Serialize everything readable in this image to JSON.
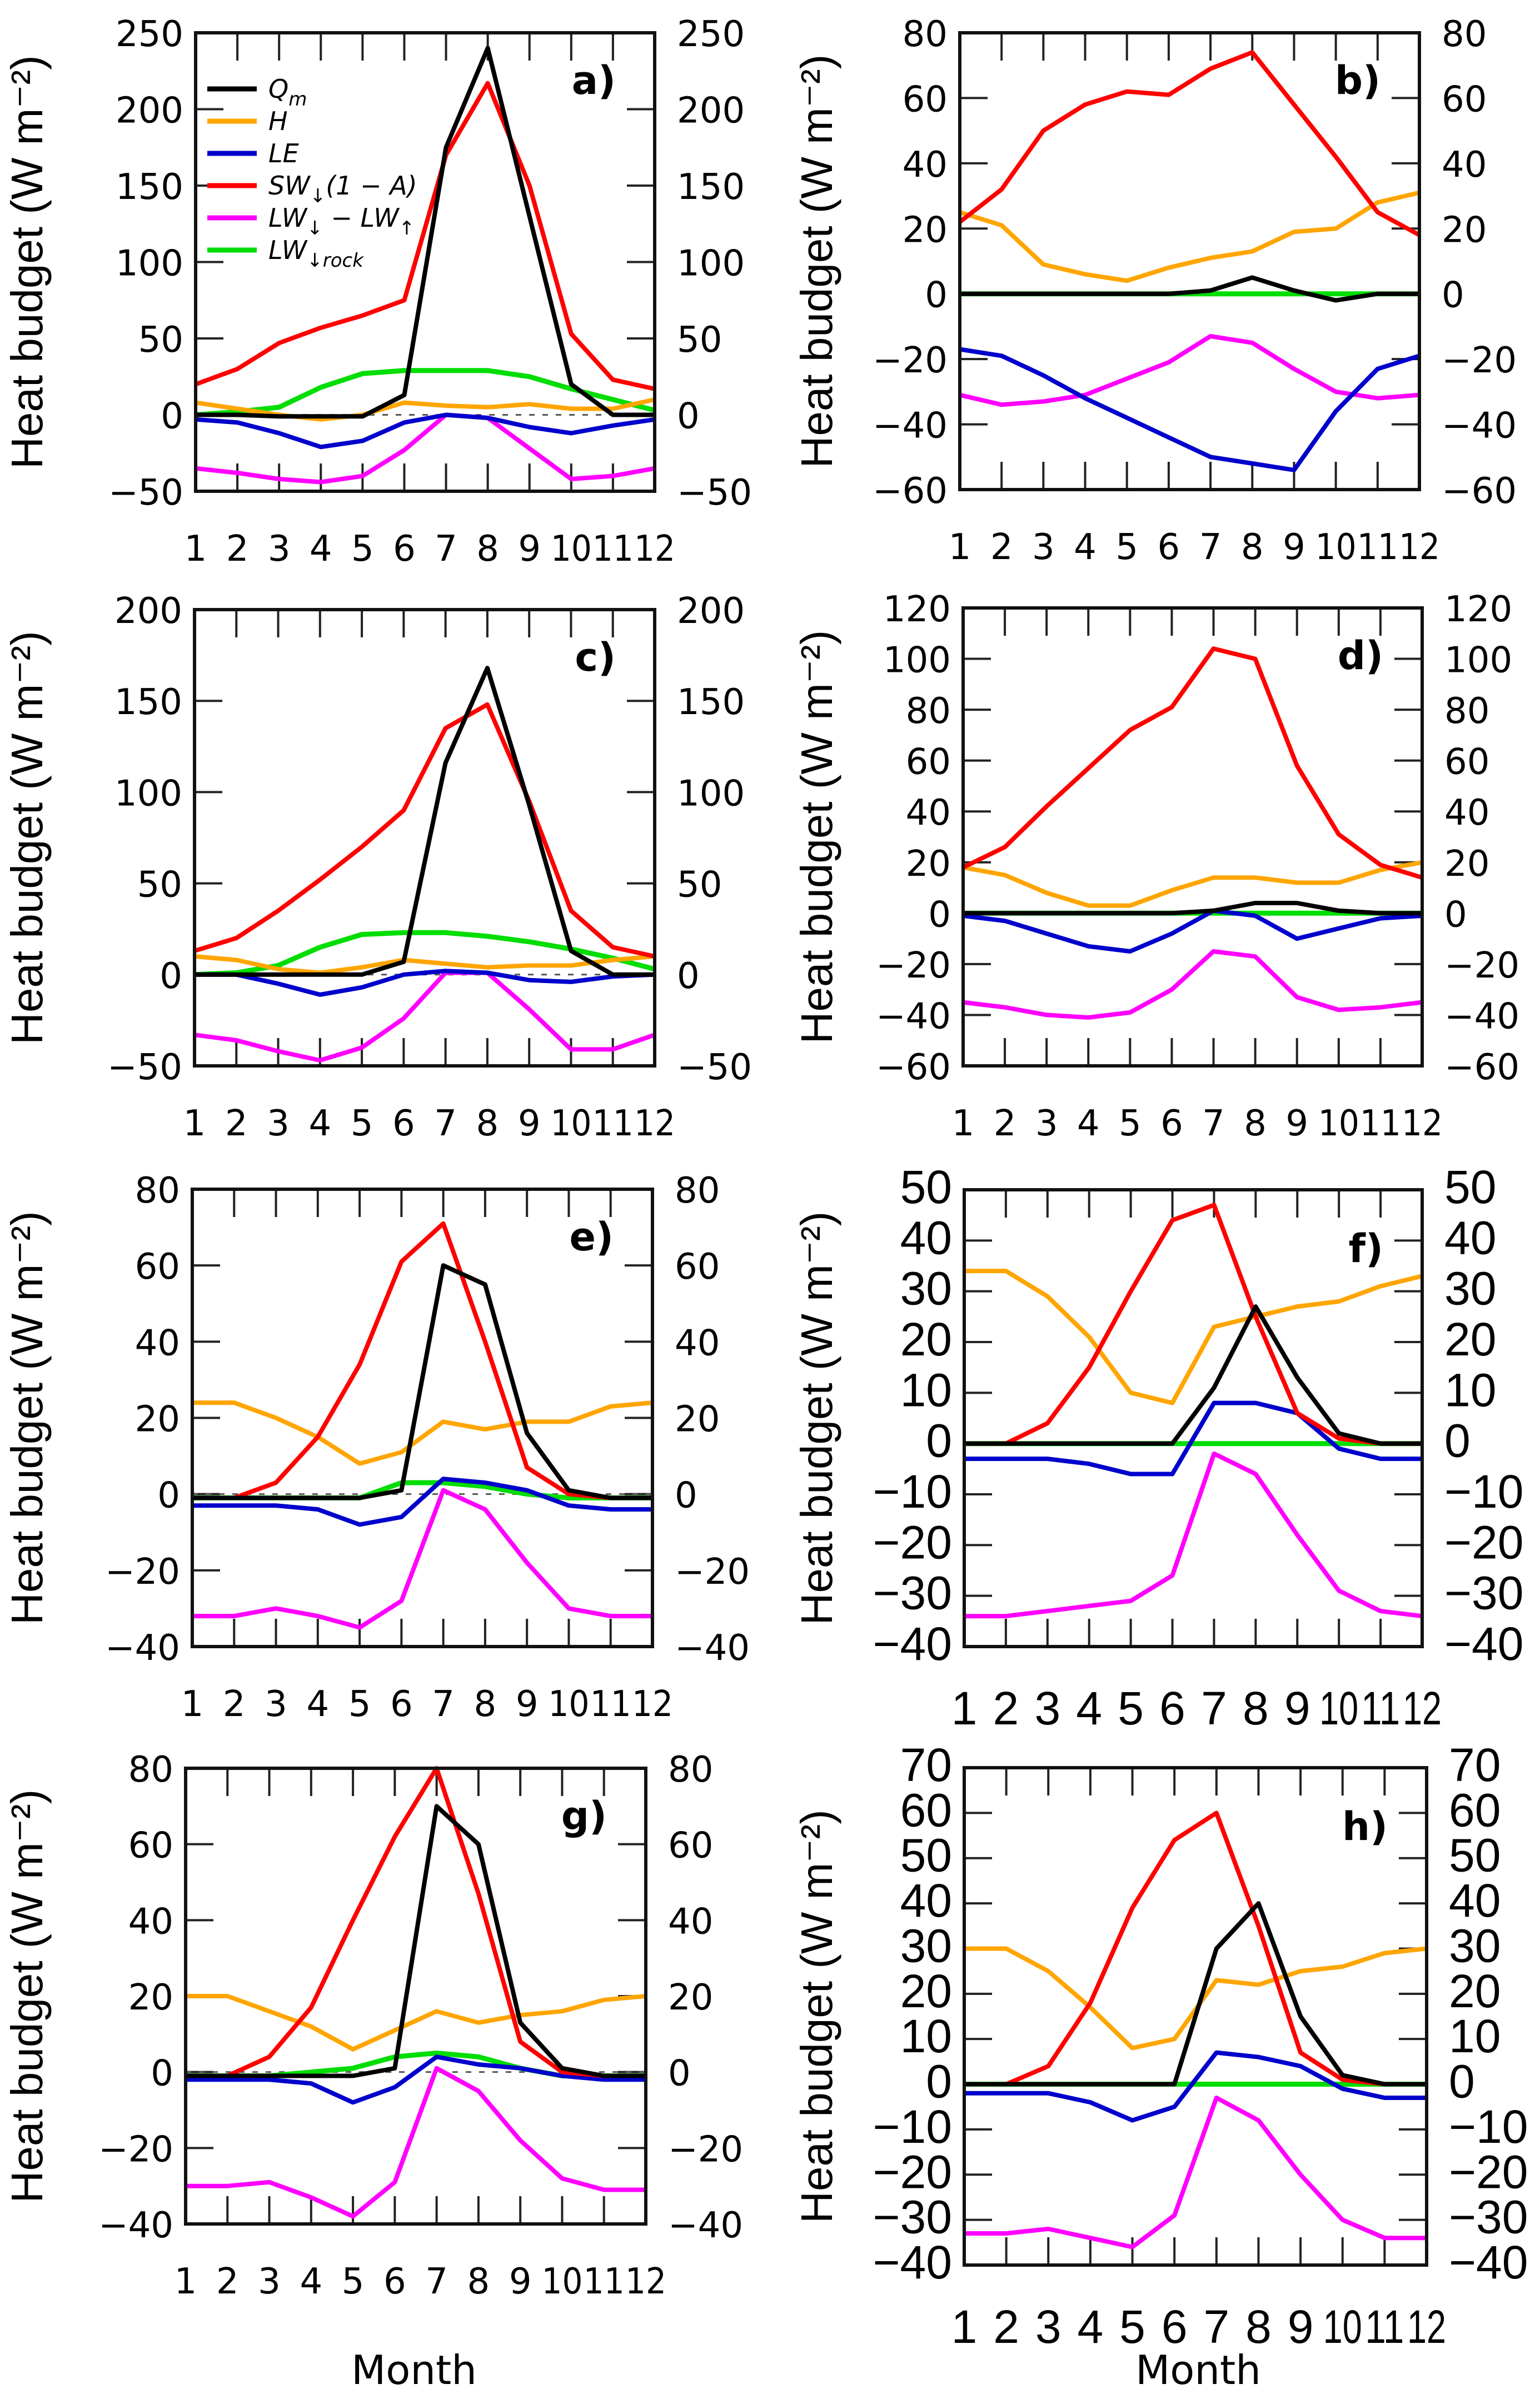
{
  "chart_data": {
    "type": "line",
    "xlabel": "Month",
    "ylabel": "Heat budget (W m⁻²)",
    "months": [
      "1",
      "2",
      "3",
      "4",
      "5",
      "6",
      "7",
      "8",
      "9",
      "10",
      "11",
      "12"
    ],
    "legend": {
      "placement": "top-left of panel a",
      "entries": [
        {
          "key": "Qm",
          "text": "Qm",
          "parts": [
            [
              "Q",
              ""
            ],
            [
              "m",
              "sub"
            ]
          ],
          "color": "#000000"
        },
        {
          "key": "H",
          "text": "H",
          "parts": [
            [
              "H",
              ""
            ]
          ],
          "color": "#FFA500"
        },
        {
          "key": "LE",
          "text": "LE",
          "parts": [
            [
              "LE",
              ""
            ]
          ],
          "color": "#0000CC"
        },
        {
          "key": "SW",
          "text": "SW↓(1 − A)",
          "parts": [
            [
              "SW",
              ""
            ],
            [
              "↓",
              "sub"
            ],
            [
              "(1 − A)",
              ""
            ]
          ],
          "color": "#FF0000"
        },
        {
          "key": "LW",
          "text": "LW↓ − LW↑",
          "parts": [
            [
              "LW",
              ""
            ],
            [
              "↓",
              "sub"
            ],
            [
              " − LW",
              ""
            ],
            [
              "↑",
              "sub"
            ]
          ],
          "color": "#FF00FF"
        },
        {
          "key": "rock",
          "text": "LW↓rock",
          "parts": [
            [
              "LW",
              ""
            ],
            [
              "↓rock",
              "sub"
            ]
          ],
          "color": "#00DD00"
        }
      ]
    },
    "panels": [
      {
        "label": "a)",
        "ylim": [
          -50,
          250
        ],
        "yticks": [
          -50,
          0,
          50,
          100,
          150,
          200,
          250
        ],
        "zero_dotted": true,
        "series": {
          "rock": [
            0,
            2,
            5,
            18,
            27,
            29,
            29,
            29,
            25,
            17,
            10,
            3
          ],
          "LW": [
            -35,
            -38,
            -42,
            -44,
            -40,
            -23,
            0,
            -2,
            -22,
            -42,
            -40,
            -35
          ],
          "LE": [
            -3,
            -5,
            -12,
            -21,
            -17,
            -5,
            0,
            -2,
            -8,
            -12,
            -7,
            -3
          ],
          "H": [
            8,
            4,
            0,
            -3,
            0,
            8,
            6,
            5,
            7,
            4,
            4,
            10
          ],
          "SW": [
            20,
            30,
            47,
            57,
            65,
            75,
            170,
            217,
            150,
            53,
            23,
            17
          ],
          "Qm": [
            0,
            0,
            -1,
            -1,
            -1,
            13,
            175,
            240,
            130,
            20,
            0,
            0
          ]
        }
      },
      {
        "label": "b)",
        "ylim": [
          -60,
          80
        ],
        "yticks": [
          -60,
          -40,
          -20,
          0,
          20,
          40,
          60,
          80
        ],
        "zero_dotted": false,
        "series": {
          "rock": [
            0,
            0,
            0,
            0,
            0,
            0,
            0,
            0,
            0,
            0,
            0,
            0
          ],
          "LW": [
            -31,
            -34,
            -33,
            -31,
            -26,
            -21,
            -13,
            -15,
            -23,
            -30,
            -32,
            -31
          ],
          "LE": [
            -17,
            -19,
            -25,
            -32,
            -38,
            -44,
            -50,
            -52,
            -54,
            -36,
            -23,
            -19
          ],
          "H": [
            25,
            21,
            9,
            6,
            4,
            8,
            11,
            13,
            19,
            20,
            28,
            31
          ],
          "SW": [
            22,
            32,
            50,
            58,
            62,
            61,
            69,
            74,
            58,
            42,
            25,
            18
          ],
          "Qm": [
            0,
            0,
            0,
            0,
            0,
            0,
            1,
            5,
            1,
            -2,
            0,
            0
          ]
        }
      },
      {
        "label": "c)",
        "ylim": [
          -50,
          200
        ],
        "yticks": [
          -50,
          0,
          50,
          100,
          150,
          200
        ],
        "zero_dotted": true,
        "series": {
          "rock": [
            0,
            1,
            5,
            15,
            22,
            23,
            23,
            21,
            18,
            14,
            9,
            3
          ],
          "LW": [
            -33,
            -36,
            -42,
            -47,
            -40,
            -24,
            1,
            1,
            -19,
            -41,
            -41,
            -33
          ],
          "LE": [
            0,
            0,
            -5,
            -11,
            -7,
            0,
            2,
            1,
            -3,
            -4,
            -1,
            0
          ],
          "H": [
            10,
            8,
            3,
            1,
            4,
            8,
            6,
            4,
            5,
            5,
            8,
            10
          ],
          "SW": [
            13,
            20,
            35,
            52,
            70,
            90,
            135,
            148,
            95,
            35,
            15,
            10
          ],
          "Qm": [
            0,
            0,
            0,
            0,
            0,
            7,
            116,
            168,
            93,
            13,
            0,
            0
          ]
        }
      },
      {
        "label": "d)",
        "ylim": [
          -60,
          120
        ],
        "yticks": [
          -60,
          -40,
          -20,
          0,
          20,
          40,
          60,
          80,
          100,
          120
        ],
        "zero_dotted": false,
        "series": {
          "rock": [
            0,
            0,
            0,
            0,
            0,
            0,
            0,
            0,
            0,
            0,
            0,
            0
          ],
          "LW": [
            -35,
            -37,
            -40,
            -41,
            -39,
            -30,
            -15,
            -17,
            -33,
            -38,
            -37,
            -35
          ],
          "LE": [
            -1,
            -3,
            -8,
            -13,
            -15,
            -8,
            1,
            -1,
            -10,
            -6,
            -2,
            -1
          ],
          "H": [
            18,
            15,
            8,
            3,
            3,
            9,
            14,
            14,
            12,
            12,
            17,
            20
          ],
          "SW": [
            18,
            26,
            42,
            57,
            72,
            81,
            104,
            100,
            58,
            31,
            19,
            14
          ],
          "Qm": [
            0,
            0,
            0,
            0,
            0,
            0,
            1,
            4,
            4,
            1,
            0,
            0
          ]
        }
      },
      {
        "label": "e)",
        "ylim": [
          -40,
          80
        ],
        "yticks": [
          -40,
          -20,
          0,
          20,
          40,
          60,
          80
        ],
        "zero_dotted": true,
        "series": {
          "rock": [
            -1,
            -1,
            -1,
            -1,
            -1,
            3,
            3,
            2,
            0,
            -1,
            -1,
            -1
          ],
          "LW": [
            -32,
            -32,
            -30,
            -32,
            -35,
            -28,
            1,
            -4,
            -18,
            -30,
            -32,
            -32
          ],
          "LE": [
            -3,
            -3,
            -3,
            -4,
            -8,
            -6,
            4,
            3,
            1,
            -3,
            -4,
            -4
          ],
          "H": [
            24,
            24,
            20,
            15,
            8,
            11,
            19,
            17,
            19,
            19,
            23,
            24
          ],
          "SW": [
            -1,
            -1,
            3,
            15,
            34,
            61,
            71,
            40,
            7,
            0,
            -1,
            -1
          ],
          "Qm": [
            -1,
            -1,
            -1,
            -1,
            -1,
            1,
            60,
            55,
            16,
            1,
            -1,
            -1
          ]
        }
      },
      {
        "label": "f)",
        "ylim": [
          -40,
          50
        ],
        "yticks": [
          -40,
          -30,
          -20,
          -10,
          0,
          10,
          20,
          30,
          40,
          50
        ],
        "zero_dotted": false,
        "series": {
          "rock": [
            0,
            0,
            0,
            0,
            0,
            0,
            0,
            0,
            0,
            0,
            0,
            0
          ],
          "LW": [
            -34,
            -34,
            -33,
            -32,
            -31,
            -26,
            -2,
            -6,
            -18,
            -29,
            -33,
            -34
          ],
          "LE": [
            -3,
            -3,
            -3,
            -4,
            -6,
            -6,
            8,
            8,
            6,
            -1,
            -3,
            -3
          ],
          "H": [
            34,
            34,
            29,
            21,
            10,
            8,
            23,
            25,
            27,
            28,
            31,
            33
          ],
          "SW": [
            0,
            0,
            4,
            15,
            30,
            44,
            47,
            25,
            6,
            1,
            0,
            0
          ],
          "Qm": [
            0,
            0,
            0,
            0,
            0,
            0,
            11,
            27,
            13,
            2,
            0,
            0
          ]
        }
      },
      {
        "label": "g)",
        "ylim": [
          -40,
          80
        ],
        "yticks": [
          -40,
          -20,
          0,
          20,
          40,
          60,
          80
        ],
        "zero_dotted": true,
        "series": {
          "rock": [
            -1,
            -1,
            -1,
            0,
            1,
            4,
            5,
            4,
            1,
            -1,
            -1,
            -1
          ],
          "LW": [
            -30,
            -30,
            -29,
            -33,
            -38,
            -29,
            1,
            -5,
            -18,
            -28,
            -31,
            -31
          ],
          "LE": [
            -2,
            -2,
            -2,
            -3,
            -8,
            -4,
            4,
            2,
            1,
            -1,
            -2,
            -2
          ],
          "H": [
            20,
            20,
            16,
            12,
            6,
            11,
            16,
            13,
            15,
            16,
            19,
            20
          ],
          "SW": [
            -1,
            -1,
            4,
            17,
            40,
            62,
            80,
            47,
            8,
            0,
            -1,
            -1
          ],
          "Qm": [
            -1,
            -1,
            -1,
            -1,
            -1,
            1,
            70,
            60,
            13,
            1,
            -1,
            -1
          ]
        }
      },
      {
        "label": "h)",
        "ylim": [
          -40,
          70
        ],
        "yticks": [
          -40,
          -30,
          -20,
          -10,
          0,
          10,
          20,
          30,
          40,
          50,
          60,
          70
        ],
        "zero_dotted": false,
        "series": {
          "rock": [
            0,
            0,
            0,
            0,
            0,
            0,
            0,
            0,
            0,
            0,
            0,
            0
          ],
          "LW": [
            -33,
            -33,
            -32,
            -34,
            -36,
            -29,
            -3,
            -8,
            -20,
            -30,
            -34,
            -34
          ],
          "LE": [
            -2,
            -2,
            -2,
            -4,
            -8,
            -5,
            7,
            6,
            4,
            -1,
            -3,
            -3
          ],
          "H": [
            30,
            30,
            25,
            17,
            8,
            10,
            23,
            22,
            25,
            26,
            29,
            30
          ],
          "SW": [
            0,
            0,
            4,
            18,
            39,
            54,
            60,
            35,
            7,
            1,
            0,
            0
          ],
          "Qm": [
            0,
            0,
            0,
            0,
            0,
            0,
            30,
            40,
            15,
            2,
            0,
            0
          ]
        }
      }
    ]
  }
}
